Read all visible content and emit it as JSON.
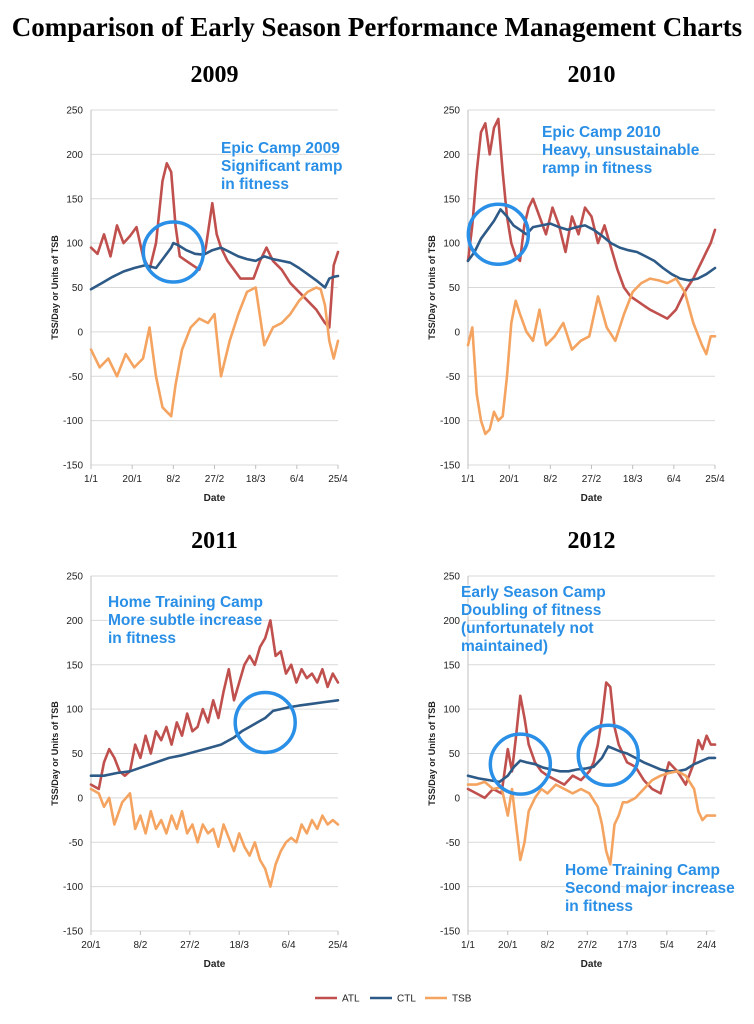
{
  "title": "Comparison of Early Season Performance Management Charts",
  "legend": [
    {
      "name": "ATL",
      "color": "#c0504d"
    },
    {
      "name": "CTL",
      "color": "#2e5a87"
    },
    {
      "name": "TSB",
      "color": "#f4a460"
    }
  ],
  "chart_data": [
    {
      "type": "line",
      "title": "2009",
      "xlabel": "Date",
      "ylabel": "TSS/Day or Units of TSB",
      "ylim": [
        -150,
        250
      ],
      "yticks": [
        250,
        200,
        150,
        100,
        50,
        0,
        -50,
        -100,
        -150
      ],
      "xticks": [
        "1/1",
        "20/1",
        "8/2",
        "27/2",
        "18/3",
        "6/4",
        "25/4"
      ],
      "xticks_day": [
        0,
        19,
        38,
        57,
        76,
        95,
        114
      ],
      "x_range_day": [
        0,
        114
      ],
      "annotation": [
        "Epic Camp 2009",
        "Significant ramp",
        "in fitness"
      ],
      "circle_day": 38,
      "circle_value": 90,
      "series": [
        {
          "name": "ATL",
          "day": [
            0,
            3,
            6,
            9,
            12,
            15,
            18,
            21,
            24,
            27,
            30,
            33,
            35,
            37,
            39,
            41,
            44,
            47,
            50,
            53,
            56,
            58,
            60,
            63,
            66,
            69,
            72,
            75,
            78,
            81,
            84,
            88,
            92,
            96,
            100,
            104,
            108,
            110,
            112,
            114
          ],
          "values": [
            95,
            88,
            110,
            85,
            120,
            100,
            108,
            118,
            85,
            70,
            100,
            170,
            190,
            180,
            120,
            85,
            80,
            75,
            70,
            95,
            145,
            110,
            95,
            80,
            70,
            60,
            60,
            60,
            80,
            95,
            80,
            70,
            55,
            45,
            35,
            25,
            10,
            5,
            75,
            90
          ]
        },
        {
          "name": "CTL",
          "day": [
            0,
            5,
            10,
            15,
            20,
            25,
            30,
            34,
            37,
            38,
            40,
            44,
            48,
            52,
            56,
            60,
            64,
            68,
            72,
            76,
            80,
            84,
            88,
            92,
            96,
            100,
            104,
            108,
            110,
            112,
            114
          ],
          "values": [
            48,
            55,
            62,
            68,
            72,
            75,
            72,
            85,
            95,
            100,
            98,
            92,
            88,
            87,
            92,
            95,
            90,
            85,
            82,
            80,
            85,
            82,
            80,
            78,
            72,
            65,
            58,
            50,
            60,
            62,
            63
          ]
        },
        {
          "name": "TSB",
          "day": [
            0,
            4,
            8,
            12,
            16,
            20,
            24,
            27,
            30,
            33,
            35,
            37,
            39,
            42,
            46,
            50,
            54,
            57,
            60,
            64,
            68,
            72,
            76,
            80,
            84,
            88,
            92,
            96,
            100,
            104,
            106,
            108,
            110,
            112,
            114
          ],
          "values": [
            -20,
            -40,
            -30,
            -50,
            -25,
            -40,
            -30,
            5,
            -50,
            -85,
            -90,
            -95,
            -60,
            -20,
            5,
            15,
            10,
            20,
            -50,
            -10,
            20,
            45,
            50,
            -15,
            5,
            10,
            20,
            35,
            45,
            50,
            48,
            30,
            -10,
            -30,
            -10
          ]
        }
      ]
    },
    {
      "type": "line",
      "title": "2010",
      "xlabel": "Date",
      "ylabel": "TSS/Day or Units of TSB",
      "ylim": [
        -150,
        250
      ],
      "yticks": [
        250,
        200,
        150,
        100,
        50,
        0,
        -50,
        -100,
        -150
      ],
      "xticks": [
        "1/1",
        "20/1",
        "8/2",
        "27/2",
        "18/3",
        "6/4",
        "25/4"
      ],
      "xticks_day": [
        0,
        19,
        38,
        57,
        76,
        95,
        114
      ],
      "x_range_day": [
        0,
        114
      ],
      "annotation": [
        "Epic Camp 2010",
        "Heavy, unsustainable",
        "ramp in fitness"
      ],
      "circle_day": 14,
      "circle_value": 110,
      "series": [
        {
          "name": "ATL",
          "day": [
            0,
            2,
            4,
            6,
            8,
            10,
            12,
            14,
            16,
            18,
            20,
            22,
            24,
            26,
            28,
            30,
            33,
            36,
            39,
            42,
            45,
            48,
            51,
            54,
            57,
            60,
            63,
            66,
            69,
            72,
            75,
            78,
            81,
            84,
            88,
            92,
            96,
            100,
            104,
            108,
            110,
            112,
            114
          ],
          "values": [
            80,
            120,
            180,
            225,
            235,
            200,
            230,
            240,
            180,
            130,
            100,
            85,
            80,
            120,
            140,
            150,
            130,
            110,
            140,
            120,
            90,
            130,
            110,
            140,
            130,
            100,
            120,
            95,
            70,
            50,
            40,
            35,
            30,
            25,
            20,
            15,
            25,
            45,
            60,
            80,
            90,
            100,
            115
          ]
        },
        {
          "name": "CTL",
          "day": [
            0,
            3,
            6,
            9,
            12,
            15,
            18,
            21,
            24,
            27,
            30,
            34,
            38,
            42,
            46,
            50,
            54,
            58,
            62,
            66,
            70,
            74,
            78,
            82,
            86,
            90,
            94,
            98,
            102,
            106,
            110,
            114
          ],
          "values": [
            80,
            90,
            105,
            115,
            125,
            138,
            130,
            120,
            115,
            110,
            118,
            120,
            122,
            118,
            115,
            118,
            120,
            115,
            108,
            100,
            95,
            92,
            90,
            85,
            80,
            72,
            65,
            60,
            58,
            60,
            65,
            72
          ]
        },
        {
          "name": "TSB",
          "day": [
            0,
            2,
            4,
            6,
            8,
            10,
            12,
            14,
            16,
            18,
            20,
            22,
            24,
            27,
            30,
            33,
            36,
            40,
            44,
            48,
            52,
            56,
            60,
            64,
            68,
            72,
            76,
            80,
            84,
            88,
            92,
            96,
            100,
            104,
            108,
            110,
            112,
            114
          ],
          "values": [
            -15,
            5,
            -70,
            -100,
            -115,
            -110,
            -90,
            -100,
            -95,
            -50,
            10,
            35,
            20,
            0,
            -10,
            25,
            -15,
            -5,
            10,
            -20,
            -10,
            -5,
            40,
            5,
            -10,
            20,
            45,
            55,
            60,
            58,
            55,
            60,
            45,
            10,
            -15,
            -25,
            -5,
            -5
          ]
        }
      ]
    },
    {
      "type": "line",
      "title": "2011",
      "xlabel": "Date",
      "ylabel": "TSS/Day or Units of TSB",
      "ylim": [
        -150,
        250
      ],
      "yticks": [
        250,
        200,
        150,
        100,
        50,
        0,
        -50,
        -100,
        -150
      ],
      "xticks": [
        "20/1",
        "8/2",
        "27/2",
        "18/3",
        "6/4",
        "25/4"
      ],
      "xticks_day": [
        0,
        19,
        38,
        57,
        76,
        95
      ],
      "x_range_day": [
        0,
        95
      ],
      "annotation": [
        "Home Training Camp",
        "More subtle increase",
        "in fitness"
      ],
      "circle_day": 67,
      "circle_value": 85,
      "series": [
        {
          "name": "ATL",
          "day": [
            0,
            3,
            5,
            7,
            9,
            11,
            13,
            15,
            17,
            19,
            21,
            23,
            25,
            27,
            29,
            31,
            33,
            35,
            37,
            39,
            41,
            43,
            45,
            47,
            49,
            51,
            53,
            55,
            57,
            59,
            61,
            63,
            65,
            67,
            69,
            71,
            73,
            75,
            77,
            79,
            81,
            83,
            85,
            87,
            89,
            91,
            93,
            95
          ],
          "values": [
            15,
            10,
            40,
            55,
            45,
            30,
            25,
            30,
            60,
            45,
            70,
            50,
            75,
            65,
            80,
            60,
            85,
            70,
            95,
            75,
            80,
            100,
            85,
            110,
            90,
            120,
            145,
            110,
            130,
            150,
            160,
            150,
            170,
            180,
            200,
            160,
            165,
            140,
            150,
            130,
            145,
            135,
            140,
            130,
            145,
            125,
            140,
            130
          ]
        },
        {
          "name": "CTL",
          "day": [
            0,
            5,
            10,
            15,
            20,
            25,
            30,
            35,
            40,
            45,
            50,
            55,
            58,
            61,
            64,
            67,
            70,
            73,
            76,
            80,
            85,
            90,
            95
          ],
          "values": [
            25,
            25,
            28,
            30,
            35,
            40,
            45,
            48,
            52,
            56,
            60,
            68,
            75,
            80,
            85,
            90,
            98,
            100,
            102,
            104,
            106,
            108,
            110
          ]
        },
        {
          "name": "TSB",
          "day": [
            0,
            3,
            5,
            7,
            9,
            12,
            15,
            17,
            19,
            21,
            23,
            25,
            27,
            29,
            31,
            33,
            35,
            37,
            39,
            41,
            43,
            45,
            47,
            49,
            51,
            53,
            55,
            57,
            59,
            61,
            63,
            65,
            67,
            69,
            71,
            73,
            75,
            77,
            79,
            81,
            83,
            85,
            87,
            89,
            91,
            93,
            95
          ],
          "values": [
            10,
            5,
            -10,
            0,
            -30,
            -5,
            5,
            -35,
            -20,
            -40,
            -15,
            -35,
            -25,
            -40,
            -20,
            -35,
            -15,
            -40,
            -30,
            -50,
            -30,
            -40,
            -35,
            -55,
            -30,
            -45,
            -60,
            -40,
            -55,
            -65,
            -50,
            -70,
            -80,
            -100,
            -75,
            -60,
            -50,
            -45,
            -50,
            -30,
            -40,
            -25,
            -35,
            -20,
            -30,
            -25,
            -30
          ]
        }
      ]
    },
    {
      "type": "line",
      "title": "2012",
      "xlabel": "Date",
      "ylabel": "TSS/Day or Units of TSB",
      "ylim": [
        -150,
        250
      ],
      "yticks": [
        250,
        200,
        150,
        100,
        50,
        0,
        -50,
        -100,
        -150
      ],
      "xticks": [
        "1/1",
        "20/1",
        "8/2",
        "27/2",
        "17/3",
        "5/4",
        "24/4"
      ],
      "xticks_day": [
        0,
        19,
        38,
        57,
        76,
        95,
        114
      ],
      "x_range_day": [
        0,
        118
      ],
      "annotation": [
        "Early Season Camp",
        "Doubling of fitness",
        "(unfortunately not",
        "maintained)"
      ],
      "annotation2": [
        "Home Training Camp",
        "Second major increase",
        "in fitness"
      ],
      "circle_day": 25,
      "circle_value": 38,
      "circle2_day": 67,
      "circle2_value": 48,
      "series": [
        {
          "name": "ATL",
          "day": [
            0,
            4,
            8,
            12,
            16,
            19,
            21,
            23,
            25,
            27,
            29,
            32,
            35,
            38,
            42,
            46,
            50,
            54,
            58,
            60,
            62,
            64,
            66,
            68,
            70,
            72,
            74,
            76,
            80,
            84,
            88,
            92,
            96,
            100,
            104,
            108,
            110,
            112,
            114,
            116,
            118
          ],
          "values": [
            10,
            5,
            0,
            10,
            5,
            55,
            30,
            70,
            115,
            90,
            60,
            40,
            30,
            25,
            20,
            15,
            25,
            20,
            30,
            40,
            60,
            90,
            130,
            125,
            80,
            60,
            50,
            40,
            35,
            20,
            10,
            5,
            40,
            30,
            15,
            40,
            65,
            55,
            70,
            60,
            60
          ]
        },
        {
          "name": "CTL",
          "day": [
            0,
            5,
            10,
            15,
            19,
            22,
            25,
            28,
            32,
            36,
            40,
            44,
            48,
            52,
            56,
            60,
            64,
            67,
            70,
            73,
            76,
            80,
            84,
            88,
            92,
            96,
            100,
            104,
            108,
            112,
            115,
            118
          ],
          "values": [
            25,
            22,
            20,
            18,
            25,
            35,
            42,
            40,
            38,
            34,
            32,
            30,
            30,
            32,
            33,
            35,
            45,
            58,
            55,
            52,
            50,
            45,
            40,
            36,
            32,
            30,
            30,
            32,
            38,
            42,
            45,
            45
          ]
        },
        {
          "name": "TSB",
          "day": [
            0,
            4,
            8,
            12,
            16,
            19,
            21,
            23,
            25,
            27,
            29,
            32,
            35,
            38,
            42,
            46,
            50,
            54,
            58,
            62,
            64,
            66,
            68,
            70,
            72,
            74,
            76,
            80,
            84,
            88,
            92,
            96,
            100,
            104,
            108,
            110,
            112,
            114,
            116,
            118
          ],
          "values": [
            15,
            15,
            18,
            10,
            12,
            -20,
            10,
            -30,
            -70,
            -50,
            -15,
            0,
            10,
            5,
            15,
            10,
            5,
            10,
            5,
            -10,
            -30,
            -60,
            -75,
            -30,
            -20,
            -5,
            -5,
            0,
            10,
            20,
            25,
            28,
            30,
            25,
            10,
            -15,
            -25,
            -20,
            -20,
            -20
          ]
        }
      ]
    }
  ]
}
